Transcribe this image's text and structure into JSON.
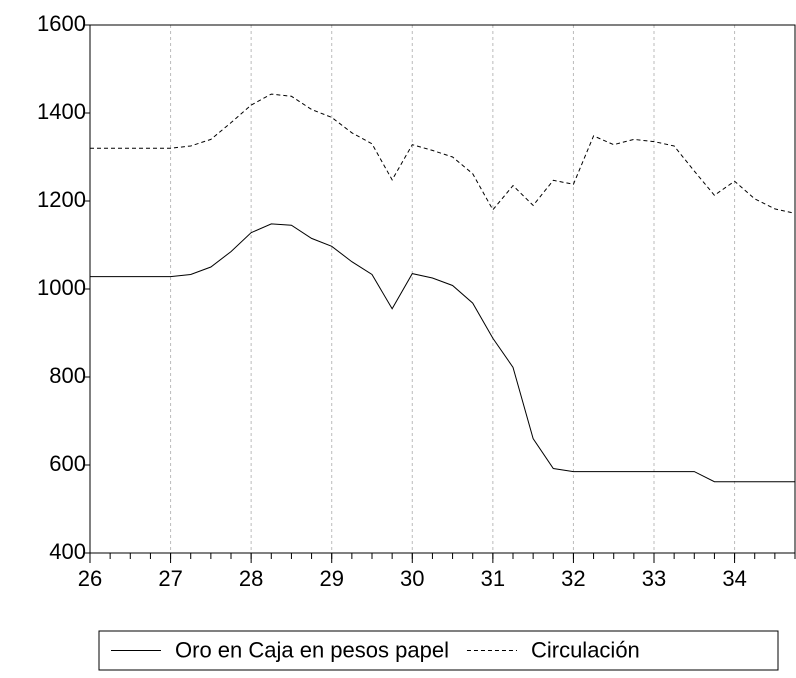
{
  "chart_data": {
    "type": "line",
    "x": [
      26,
      26.25,
      26.5,
      26.75,
      27,
      27.25,
      27.5,
      27.75,
      28,
      28.25,
      28.5,
      28.75,
      29,
      29.25,
      29.5,
      29.75,
      30,
      30.25,
      30.5,
      30.75,
      31,
      31.25,
      31.5,
      31.75,
      32,
      32.25,
      32.5,
      32.75,
      33,
      33.25,
      33.5,
      33.75,
      34,
      34.25,
      34.5,
      34.75
    ],
    "series": [
      {
        "name": "Oro en Caja en pesos papel",
        "color": "#000000",
        "dash": "solid",
        "values": [
          1028,
          1028,
          1028,
          1028,
          1028,
          1033,
          1050,
          1085,
          1128,
          1148,
          1145,
          1115,
          1097,
          1062,
          1033,
          955,
          1035,
          1025,
          1008,
          968,
          888,
          822,
          660,
          592,
          585,
          585,
          585,
          585,
          585,
          585,
          585,
          562,
          562,
          562,
          562,
          562
        ]
      },
      {
        "name": "Circulación",
        "color": "#000000",
        "dash": "dashed",
        "values": [
          1320,
          1320,
          1320,
          1320,
          1320,
          1325,
          1340,
          1378,
          1418,
          1443,
          1438,
          1408,
          1390,
          1355,
          1330,
          1248,
          1328,
          1315,
          1300,
          1262,
          1180,
          1235,
          1190,
          1247,
          1238,
          1348,
          1328,
          1340,
          1335,
          1325,
          1268,
          1213,
          1245,
          1205,
          1182,
          1172
        ]
      }
    ],
    "xlim": [
      26,
      34.75
    ],
    "xticks": [
      26,
      27,
      28,
      29,
      30,
      31,
      32,
      33,
      34
    ],
    "ylim": [
      400,
      1600
    ],
    "yticks": [
      400,
      600,
      800,
      1000,
      1200,
      1400,
      1600
    ],
    "grid": true,
    "legend": "bottom"
  }
}
